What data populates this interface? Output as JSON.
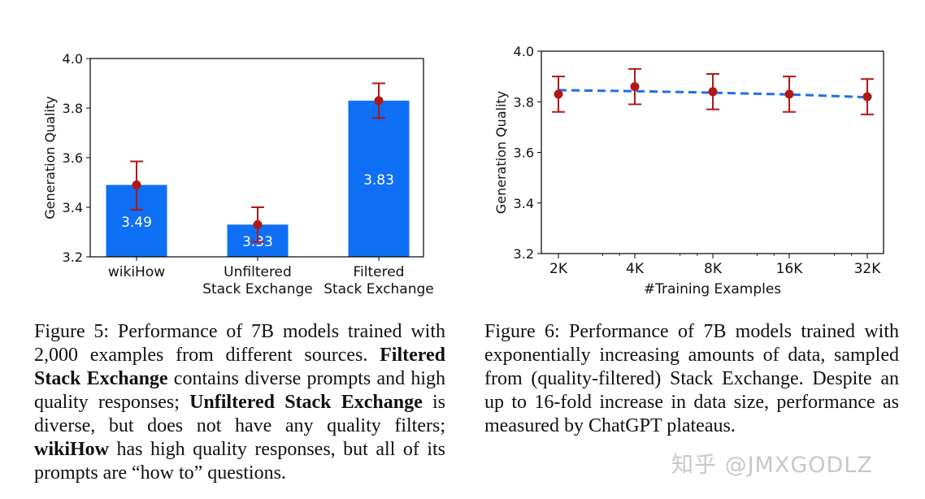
{
  "chart_data": [
    {
      "type": "bar",
      "categories": [
        "wikiHow",
        "Unfiltered\nStack Exchange",
        "Filtered\nStack Exchange"
      ],
      "values": [
        3.49,
        3.33,
        3.83
      ],
      "error_low": [
        3.39,
        3.26,
        3.76
      ],
      "error_high": [
        3.585,
        3.4,
        3.9
      ],
      "data_labels": [
        "3.49",
        "3.33",
        "3.83"
      ],
      "ylabel": "Generation Quality",
      "xlabel": "",
      "ylim": [
        3.2,
        4.0
      ],
      "yticks": [
        "3.2",
        "3.4",
        "3.6",
        "3.8",
        "4.0"
      ],
      "bar_color": "#0f6ff5",
      "marker_color": "#b01818"
    },
    {
      "type": "line",
      "x": [
        "2K",
        "4K",
        "8K",
        "16K",
        "32K"
      ],
      "values": [
        3.83,
        3.86,
        3.84,
        3.83,
        3.82
      ],
      "error_low": [
        3.76,
        3.79,
        3.77,
        3.76,
        3.75
      ],
      "error_high": [
        3.9,
        3.93,
        3.91,
        3.9,
        3.89
      ],
      "trend": [
        3.846,
        3.842,
        3.836,
        3.829,
        3.818
      ],
      "xlabel": "#Training Examples",
      "ylabel": "Generation Quality",
      "ylim": [
        3.2,
        4.0
      ],
      "yticks": [
        "3.2",
        "3.4",
        "3.6",
        "3.8",
        "4.0"
      ],
      "line_color": "#1f6fe6",
      "marker_color": "#b01818"
    }
  ],
  "captions": {
    "fig5": {
      "p1": "Figure 5:  Performance of 7B models trained with 2,000 examples from different sources. ",
      "b1": "Filtered Stack Exchange",
      "p2": " contains diverse prompts and high quality responses; ",
      "b2": "Unfiltered Stack Exchange",
      "p3": " is diverse, but does not have any quality filters; ",
      "b3": "wikiHow",
      "p4": " has high quality responses, but all of its prompts are “how to” questions."
    },
    "fig6": "Figure 6:  Performance of 7B models trained with exponentially increasing amounts of data, sampled from (quality-filtered) Stack Exchange. Despite an up to 16-fold increase in data size, performance as measured by ChatGPT plateaus."
  },
  "watermark": "知乎 @JMXGODLZ"
}
